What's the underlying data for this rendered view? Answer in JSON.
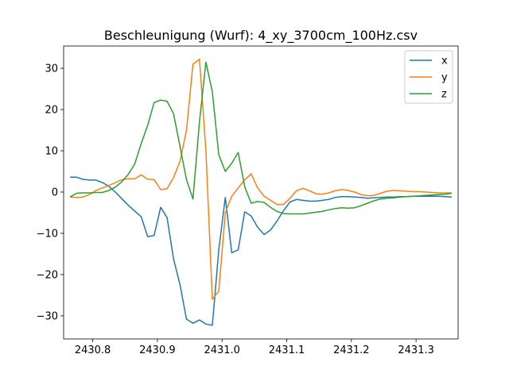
{
  "chart_data": {
    "type": "line",
    "title": "Beschleunigung (Wurf): 4_xy_3700cm_100Hz.csv",
    "xlabel": "",
    "ylabel": "",
    "xlim": [
      2430.755,
      2431.365
    ],
    "ylim": [
      -35.6,
      35.4
    ],
    "xticks": [
      2430.8,
      2430.9,
      2431.0,
      2431.1,
      2431.2,
      2431.3
    ],
    "xtick_labels": [
      "2430.8",
      "2430.9",
      "2431.0",
      "2431.1",
      "2431.2",
      "2431.3"
    ],
    "yticks": [
      -30,
      -20,
      -10,
      0,
      10,
      20,
      30
    ],
    "ytick_labels": [
      "−30",
      "−20",
      "−10",
      "0",
      "10",
      "20",
      "30"
    ],
    "grid": false,
    "legend_position": "top-right",
    "x": [
      2430.765,
      2430.775,
      2430.785,
      2430.795,
      2430.805,
      2430.815,
      2430.825,
      2430.835,
      2430.845,
      2430.855,
      2430.865,
      2430.875,
      2430.885,
      2430.895,
      2430.905,
      2430.915,
      2430.925,
      2430.935,
      2430.945,
      2430.955,
      2430.965,
      2430.975,
      2430.985,
      2430.995,
      2431.005,
      2431.015,
      2431.025,
      2431.035,
      2431.045,
      2431.055,
      2431.065,
      2431.075,
      2431.085,
      2431.095,
      2431.105,
      2431.115,
      2431.125,
      2431.135,
      2431.145,
      2431.155,
      2431.165,
      2431.175,
      2431.185,
      2431.195,
      2431.205,
      2431.215,
      2431.225,
      2431.235,
      2431.245,
      2431.255,
      2431.265,
      2431.275,
      2431.285,
      2431.295,
      2431.305,
      2431.315,
      2431.325,
      2431.335,
      2431.345,
      2431.355
    ],
    "series": [
      {
        "name": "x",
        "color": "#1f77b4",
        "values": [
          3.6,
          3.6,
          3.1,
          2.9,
          2.9,
          2.3,
          1.4,
          0.0,
          -1.6,
          -3.2,
          -4.6,
          -6.0,
          -10.8,
          -10.5,
          -3.7,
          -6.2,
          -16.2,
          -22.5,
          -30.8,
          -31.8,
          -31.0,
          -32.0,
          -32.3,
          -14.0,
          -1.3,
          -14.7,
          -14.0,
          -4.8,
          -5.8,
          -8.5,
          -10.3,
          -9.2,
          -7.0,
          -4.5,
          -2.4,
          -1.8,
          -2.0,
          -2.2,
          -2.2,
          -2.0,
          -1.8,
          -1.3,
          -1.1,
          -1.1,
          -1.2,
          -1.3,
          -1.5,
          -1.4,
          -1.3,
          -1.2,
          -1.2,
          -1.1,
          -1.1,
          -1.0,
          -1.0,
          -1.0,
          -1.0,
          -1.0,
          -1.1,
          -1.2
        ]
      },
      {
        "name": "y",
        "color": "#ff7f0e",
        "values": [
          -1.2,
          -1.3,
          -1.2,
          -0.6,
          0.4,
          1.0,
          1.6,
          2.3,
          3.0,
          3.2,
          3.2,
          4.2,
          3.1,
          3.0,
          0.6,
          0.8,
          3.5,
          7.5,
          15.0,
          31.0,
          32.2,
          10.0,
          -26.0,
          -24.0,
          -5.0,
          -1.0,
          1.0,
          3.0,
          4.4,
          1.0,
          -1.0,
          -2.0,
          -3.0,
          -3.0,
          -1.5,
          0.3,
          0.9,
          0.3,
          -0.4,
          -0.5,
          -0.2,
          0.3,
          0.6,
          0.4,
          0.0,
          -0.6,
          -0.9,
          -0.8,
          -0.3,
          0.2,
          0.4,
          0.3,
          0.2,
          0.1,
          0.1,
          0.0,
          -0.1,
          -0.2,
          -0.2,
          -0.2
        ]
      },
      {
        "name": "z",
        "color": "#2ca02c",
        "values": [
          -1.2,
          -0.3,
          -0.2,
          -0.2,
          -0.1,
          -0.1,
          0.4,
          1.2,
          2.5,
          4.3,
          6.8,
          11.8,
          16.2,
          21.7,
          22.3,
          22.0,
          19.0,
          11.0,
          3.0,
          -1.7,
          17.0,
          31.5,
          24.3,
          9.0,
          5.0,
          7.0,
          9.6,
          1.3,
          -2.7,
          -2.3,
          -2.5,
          -3.7,
          -4.7,
          -5.2,
          -5.3,
          -5.3,
          -5.3,
          -5.1,
          -4.9,
          -4.7,
          -4.3,
          -4.0,
          -3.8,
          -3.9,
          -3.8,
          -3.3,
          -2.7,
          -2.1,
          -1.7,
          -1.5,
          -1.4,
          -1.2,
          -1.1,
          -1.0,
          -0.9,
          -0.8,
          -0.7,
          -0.6,
          -0.5,
          -0.3
        ]
      }
    ]
  }
}
